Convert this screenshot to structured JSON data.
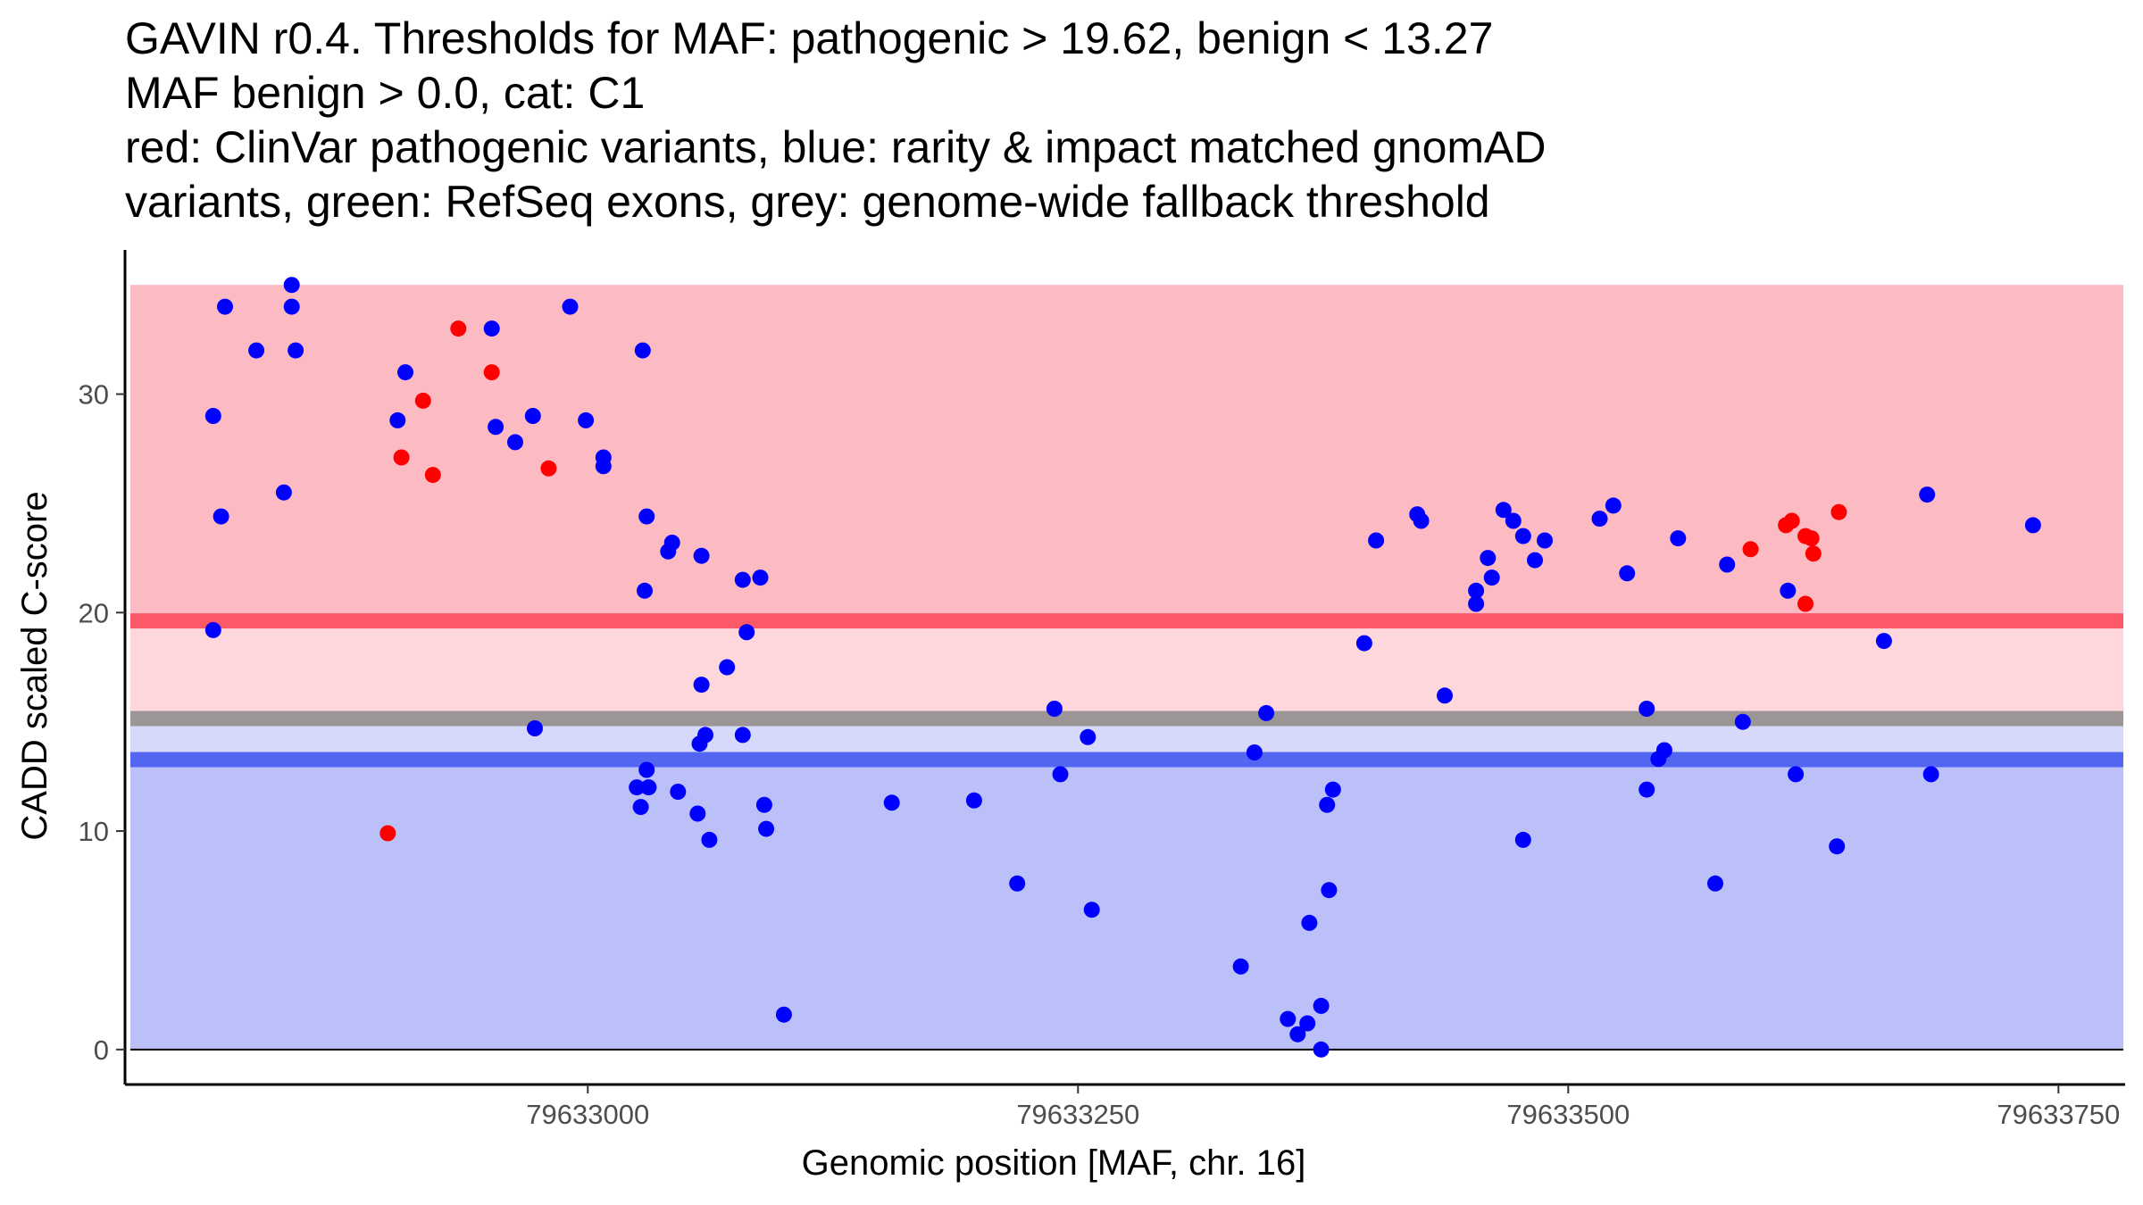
{
  "chart_data": {
    "type": "scatter",
    "title_lines": [
      "GAVIN r0.4. Thresholds for MAF: pathogenic > 19.62, benign < 13.27",
      "MAF benign > 0.0, cat: C1",
      "red: ClinVar pathogenic variants, blue: rarity & impact matched gnomAD",
      "variants, green: RefSeq exons, grey: genome-wide fallback threshold"
    ],
    "xlabel": "Genomic position [MAF, chr. 16]",
    "ylabel": "CADD scaled C-score",
    "xlim": [
      79632764,
      79633784
    ],
    "ylim": [
      -1.6,
      36.6
    ],
    "x_ticks": [
      79633000,
      79633250,
      79633500,
      79633750
    ],
    "x_tick_labels": [
      "79633000",
      "79633250",
      "79633500",
      "79633750"
    ],
    "y_ticks": [
      0,
      10,
      20,
      30
    ],
    "y_tick_labels": [
      "0",
      "10",
      "20",
      "30"
    ],
    "thresholds": {
      "pathogenic": 19.62,
      "benign": 13.27,
      "genome_wide_fallback": 15.15,
      "data_max": 35.0,
      "data_min": 0.0
    },
    "colors": {
      "pathogenic_band": "#fcbbc2",
      "middle_band": "#fdd7dc",
      "benign_upper_band": "#d6d9fb",
      "benign_band": "#bbc1f8",
      "pathogenic_line": "#fb5868",
      "benign_line": "#5266f2",
      "fallback_line": "#9b9595",
      "pathogenic_point": "#ff0000",
      "benign_point": "#0000ff"
    },
    "series": [
      {
        "name": "ClinVar pathogenic variants",
        "color": "#ff0000",
        "points": [
          [
            79632898,
            9.9
          ],
          [
            79632905,
            27.1
          ],
          [
            79632916,
            29.7
          ],
          [
            79632921,
            26.3
          ],
          [
            79632934,
            33.0
          ],
          [
            79632951,
            31.0
          ],
          [
            79632980,
            26.6
          ],
          [
            79633593,
            22.9
          ],
          [
            79633611,
            24.0
          ],
          [
            79633614,
            24.2
          ],
          [
            79633621,
            23.5
          ],
          [
            79633624,
            23.4
          ],
          [
            79633625,
            22.7
          ],
          [
            79633638,
            24.6
          ],
          [
            79633621,
            20.4
          ]
        ]
      },
      {
        "name": "rarity & impact matched gnomAD variants",
        "color": "#0000ff",
        "points": [
          [
            79632809,
            29.0
          ],
          [
            79632809,
            19.2
          ],
          [
            79632813,
            24.4
          ],
          [
            79632815,
            34.0
          ],
          [
            79632831,
            32.0
          ],
          [
            79632845,
            25.5
          ],
          [
            79632849,
            35.0
          ],
          [
            79632849,
            34.0
          ],
          [
            79632851,
            32.0
          ],
          [
            79632903,
            28.8
          ],
          [
            79632907,
            31.0
          ],
          [
            79632951,
            33.0
          ],
          [
            79632953,
            28.5
          ],
          [
            79632963,
            27.8
          ],
          [
            79632972,
            29.0
          ],
          [
            79632973,
            14.7
          ],
          [
            79632991,
            34.0
          ],
          [
            79632999,
            28.8
          ],
          [
            79633008,
            27.1
          ],
          [
            79633008,
            26.7
          ],
          [
            79633025,
            12.0
          ],
          [
            79633027,
            11.1
          ],
          [
            79633028,
            32.0
          ],
          [
            79633029,
            21.0
          ],
          [
            79633030,
            24.4
          ],
          [
            79633030,
            12.8
          ],
          [
            79633031,
            12.0
          ],
          [
            79633041,
            22.8
          ],
          [
            79633043,
            23.2
          ],
          [
            79633046,
            11.8
          ],
          [
            79633056,
            10.8
          ],
          [
            79633057,
            14.0
          ],
          [
            79633058,
            16.7
          ],
          [
            79633058,
            22.6
          ],
          [
            79633060,
            14.4
          ],
          [
            79633062,
            9.6
          ],
          [
            79633071,
            17.5
          ],
          [
            79633079,
            21.5
          ],
          [
            79633079,
            14.4
          ],
          [
            79633081,
            19.1
          ],
          [
            79633088,
            21.6
          ],
          [
            79633090,
            11.2
          ],
          [
            79633091,
            10.1
          ],
          [
            79633100,
            1.6
          ],
          [
            79633155,
            11.3
          ],
          [
            79633197,
            11.4
          ],
          [
            79633219,
            7.6
          ],
          [
            79633238,
            15.6
          ],
          [
            79633241,
            12.6
          ],
          [
            79633255,
            14.3
          ],
          [
            79633257,
            6.4
          ],
          [
            79633333,
            3.8
          ],
          [
            79633340,
            13.6
          ],
          [
            79633346,
            15.4
          ],
          [
            79633357,
            1.4
          ],
          [
            79633362,
            0.7
          ],
          [
            79633367,
            1.2
          ],
          [
            79633368,
            5.8
          ],
          [
            79633374,
            2.0
          ],
          [
            79633374,
            0.0
          ],
          [
            79633377,
            11.2
          ],
          [
            79633378,
            7.3
          ],
          [
            79633380,
            11.9
          ],
          [
            79633396,
            18.6
          ],
          [
            79633402,
            23.3
          ],
          [
            79633423,
            24.5
          ],
          [
            79633425,
            24.2
          ],
          [
            79633437,
            16.2
          ],
          [
            79633453,
            21.0
          ],
          [
            79633453,
            20.4
          ],
          [
            79633459,
            22.5
          ],
          [
            79633461,
            21.6
          ],
          [
            79633467,
            24.7
          ],
          [
            79633472,
            24.2
          ],
          [
            79633477,
            23.5
          ],
          [
            79633477,
            9.6
          ],
          [
            79633483,
            22.4
          ],
          [
            79633488,
            23.3
          ],
          [
            79633516,
            24.3
          ],
          [
            79633523,
            24.9
          ],
          [
            79633530,
            21.8
          ],
          [
            79633540,
            15.6
          ],
          [
            79633540,
            11.9
          ],
          [
            79633546,
            13.3
          ],
          [
            79633549,
            13.7
          ],
          [
            79633556,
            23.4
          ],
          [
            79633575,
            7.6
          ],
          [
            79633581,
            22.2
          ],
          [
            79633589,
            15.0
          ],
          [
            79633612,
            21.0
          ],
          [
            79633616,
            12.6
          ],
          [
            79633637,
            9.3
          ],
          [
            79633661,
            18.7
          ],
          [
            79633683,
            25.4
          ],
          [
            79633685,
            12.6
          ],
          [
            79633737,
            24.0
          ]
        ]
      }
    ]
  }
}
